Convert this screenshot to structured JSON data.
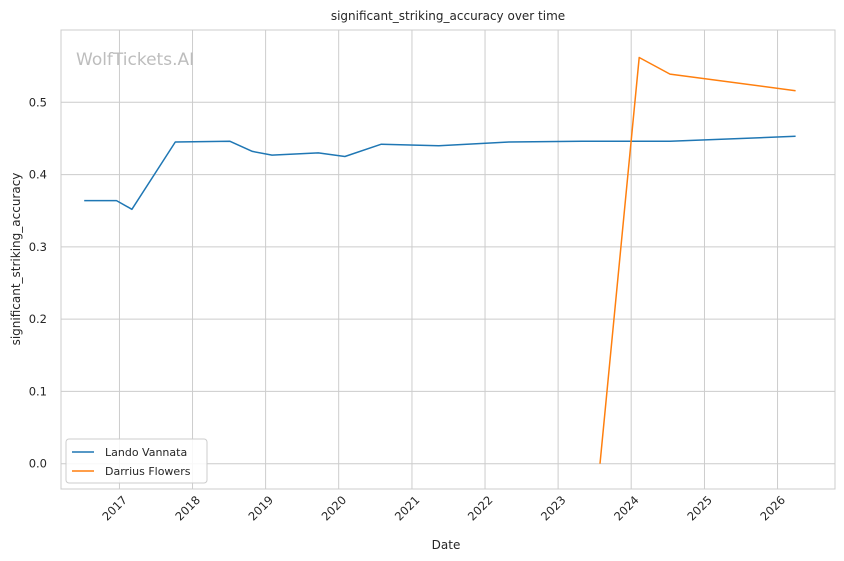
{
  "chart_data": {
    "type": "line",
    "title": "significant_striking_accuracy over time",
    "xlabel": "Date",
    "ylabel": "significant_striking_accuracy",
    "watermark": "WolfTickets.AI",
    "x_ticks": [
      "2017",
      "2018",
      "2019",
      "2020",
      "2021",
      "2022",
      "2023",
      "2024",
      "2025",
      "2026"
    ],
    "y_ticks": [
      "0.0",
      "0.1",
      "0.2",
      "0.3",
      "0.4",
      "0.5"
    ],
    "xlim": [
      "2016-03-15",
      "2026-10-15"
    ],
    "ylim": [
      -0.035,
      0.6
    ],
    "grid": true,
    "legend_position": "lower-left",
    "series": [
      {
        "name": "Lando Vannata",
        "color": "#1f77b4",
        "points": [
          {
            "x": "2016-07-09",
            "y": 0.364
          },
          {
            "x": "2016-12-17",
            "y": 0.364
          },
          {
            "x": "2017-03-04",
            "y": 0.352
          },
          {
            "x": "2017-10-07",
            "y": 0.445
          },
          {
            "x": "2018-07-07",
            "y": 0.446
          },
          {
            "x": "2018-10-27",
            "y": 0.432
          },
          {
            "x": "2019-02-02",
            "y": 0.427
          },
          {
            "x": "2019-09-21",
            "y": 0.43
          },
          {
            "x": "2020-02-01",
            "y": 0.425
          },
          {
            "x": "2020-08-01",
            "y": 0.442
          },
          {
            "x": "2021-05-15",
            "y": 0.44
          },
          {
            "x": "2022-05-01",
            "y": 0.445
          },
          {
            "x": "2023-05-01",
            "y": 0.446
          },
          {
            "x": "2024-07-13",
            "y": 0.446
          },
          {
            "x": "2026-04-01",
            "y": 0.453
          }
        ]
      },
      {
        "name": "Darrius Flowers",
        "color": "#ff7f0e",
        "points": [
          {
            "x": "2023-07-29",
            "y": 0.0
          },
          {
            "x": "2024-02-10",
            "y": 0.562
          },
          {
            "x": "2024-07-13",
            "y": 0.539
          },
          {
            "x": "2026-04-01",
            "y": 0.516
          }
        ]
      }
    ]
  }
}
